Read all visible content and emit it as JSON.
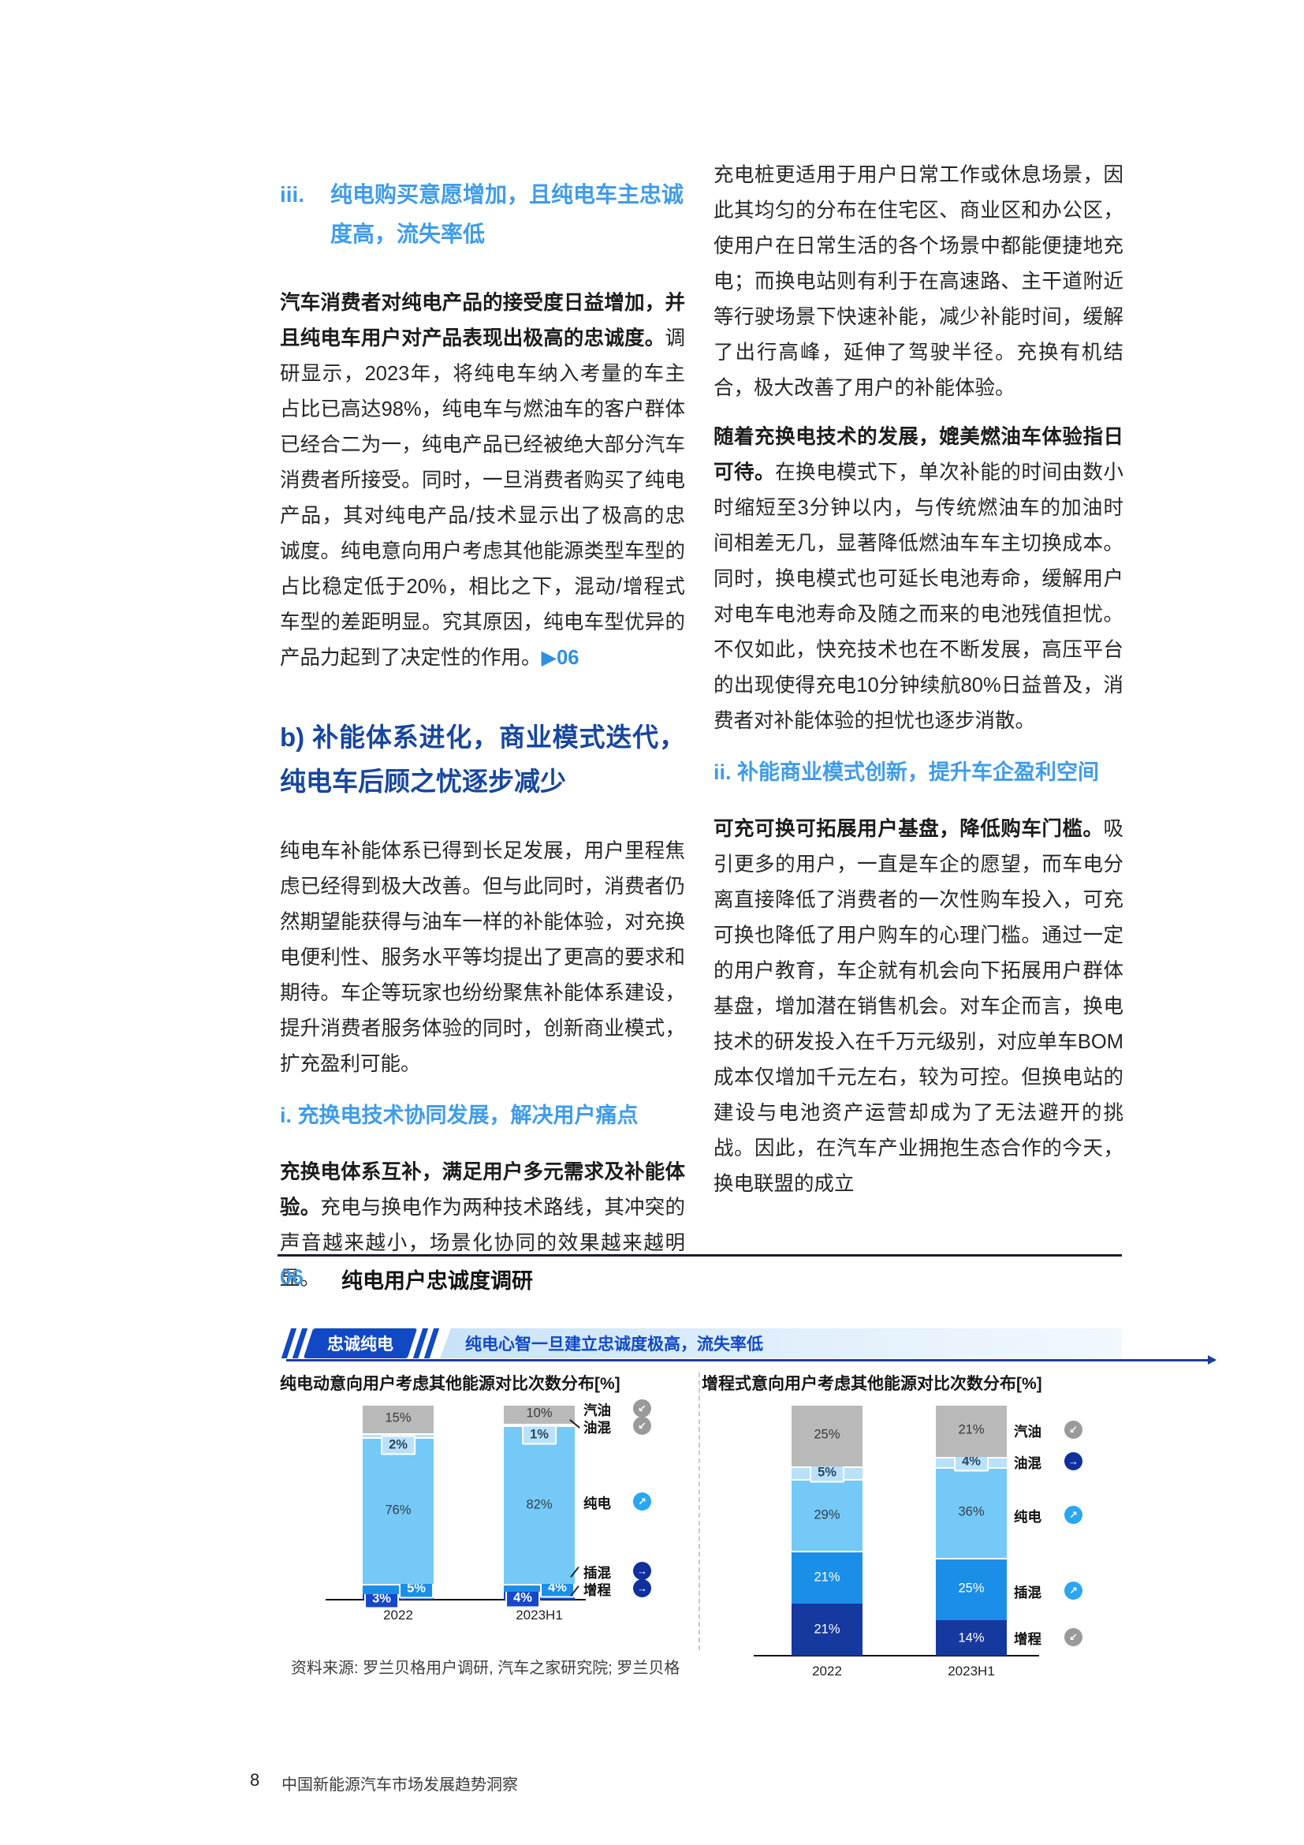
{
  "columns": {
    "left": {
      "heading_iii_num": "iii.",
      "heading_iii_text": "纯电购买意愿增加，且纯电车主忠诚度高，流失率低",
      "p1_bold": "汽车消费者对纯电产品的接受度日益增加，并且纯电车用户对产品表现出极高的忠诚度。",
      "p1_rest": "调研显示，2023年，将纯电车纳入考量的车主占比已高达98%，纯电车与燃油车的客户群体已经合二为一，纯电产品已经被绝大部分汽车消费者所接受。同时，一旦消费者购买了纯电产品，其对纯电产品/技术显示出了极高的忠诚度。纯电意向用户考虑其他能源类型车型的占比稳定低于20%，相比之下，混动/增程式车型的差距明显。究其原因，纯电车型优异的产品力起到了决定性的作用。",
      "p1_marker": "▶06",
      "heading_b": "b) 补能体系进化，商业模式迭代，纯电车后顾之忧逐步减少",
      "p2": "纯电车补能体系已得到长足发展，用户里程焦虑已经得到极大改善。但与此同时，消费者仍然期望能获得与油车一样的补能体验，对充换电便利性、服务水平等均提出了更高的要求和期待。车企等玩家也纷纷聚焦补能体系建设，提升消费者服务体验的同时，创新商业模式，扩充盈利可能。",
      "heading_i": "i. 充换电技术协同发展，解决用户痛点",
      "p3_bold": "充换电体系互补，满足用户多元需求及补能体验。",
      "p3_rest": "充电与换电作为两种技术路线，其冲突的声音越来越小，场景化协同的效果越来越明显。"
    },
    "right": {
      "p1": "充电桩更适用于用户日常工作或休息场景，因此其均匀的分布在住宅区、商业区和办公区，使用户在日常生活的各个场景中都能便捷地充电；而换电站则有利于在高速路、主干道附近等行驶场景下快速补能，减少补能时间，缓解了出行高峰，延伸了驾驶半径。充换有机结合，极大改善了用户的补能体验。",
      "p2_bold": "随着充换电技术的发展，媲美燃油车体验指日可待。",
      "p2_rest": "在换电模式下，单次补能的时间由数小时缩短至3分钟以内，与传统燃油车的加油时间相差无几，显著降低燃油车车主切换成本。同时，换电模式也可延长电池寿命，缓解用户对电车电池寿命及随之而来的电池残值担忧。不仅如此，快充技术也在不断发展，高压平台的出现使得充电10分钟续航80%日益普及，消费者对补能体验的担忧也逐步消散。",
      "heading_ii": "ii. 补能商业模式创新，提升车企盈利空间",
      "p3_bold": "可充可换可拓展用户基盘，降低购车门槛。",
      "p3_rest": "吸引更多的用户，一直是车企的愿望，而车电分离直接降低了消费者的一次性购车投入，可充可换也降低了用户购车的心理门槛。通过一定的用户教育，车企就有机会向下拓展用户群体基盘，增加潜在销售机会。对车企而言，换电技术的研发投入在千万元级别，对应单车BOM成本仅增加千元左右，较为可控。但换电站的建设与电池资产运营却成为了无法避开的挑战。因此，在汽车产业拥抱生态合作的今天，换电联盟的成立"
    }
  },
  "figure": {
    "number": "06",
    "title": "纯电用户忠诚度调研",
    "banner_tag": "忠诚纯电",
    "banner_subtitle": "纯电心智一旦建立忠诚度极高，流失率低",
    "source": "资料来源: 罗兰贝格用户调研, 汽车之家研究院; 罗兰贝格"
  },
  "footer": {
    "page_number": "8",
    "doc_title": "中国新能源汽车市场发展趋势洞察"
  },
  "colors": {
    "accent_light_blue": "#3f9ce9",
    "accent_navy": "#17479d",
    "banner_blue": "#1149c4",
    "line_navy": "#1c3e9e",
    "bar_gray": "#b9b9b9",
    "bar_pale_blue": "#b9e1fa",
    "bar_sky_blue": "#74c9f7",
    "bar_azure": "#1b8fe8",
    "bar_royal_blue": "#1547c9",
    "bar_navy": "#16399f",
    "icon_gray": "#9a9a9a",
    "icon_sky": "#2ba6f0",
    "icon_navy": "#11309e"
  },
  "chart_data": [
    {
      "type": "bar",
      "stacked": true,
      "title": "纯电动意向用户考虑其他能源对比次数分布[%]",
      "unit": "%",
      "categories": [
        "2022",
        "2023H1"
      ],
      "series": [
        {
          "name": "增程",
          "color": "#1547c9",
          "values": [
            3,
            4
          ]
        },
        {
          "name": "插混",
          "color": "#1b8fe8",
          "values": [
            5,
            4
          ]
        },
        {
          "name": "纯电",
          "color": "#74c9f7",
          "values": [
            76,
            82
          ]
        },
        {
          "name": "油混",
          "color": "#b9e1fa",
          "values": [
            2,
            1
          ]
        },
        {
          "name": "汽油",
          "color": "#b9b9b9",
          "values": [
            15,
            10
          ]
        }
      ],
      "legend": [
        {
          "label": "汽油",
          "trend": "down",
          "icon_color": "#9a9a9a"
        },
        {
          "label": "油混",
          "trend": "down",
          "icon_color": "#9a9a9a"
        },
        {
          "label": "纯电",
          "trend": "up",
          "icon_color": "#2ba6f0"
        },
        {
          "label": "插混",
          "trend": "right",
          "icon_color": "#11309e"
        },
        {
          "label": "增程",
          "trend": "right",
          "icon_color": "#11309e"
        }
      ]
    },
    {
      "type": "bar",
      "stacked": true,
      "title": "增程式意向用户考虑其他能源对比次数分布[%]",
      "unit": "%",
      "categories": [
        "2022",
        "2023H1"
      ],
      "series": [
        {
          "name": "增程",
          "color": "#16399f",
          "values": [
            21,
            14
          ]
        },
        {
          "name": "插混",
          "color": "#1b8fe8",
          "values": [
            21,
            25
          ]
        },
        {
          "name": "纯电",
          "color": "#74c9f7",
          "values": [
            29,
            36
          ]
        },
        {
          "name": "油混",
          "color": "#b9e1fa",
          "values": [
            5,
            4
          ]
        },
        {
          "name": "汽油",
          "color": "#b9b9b9",
          "values": [
            25,
            21
          ]
        }
      ],
      "legend": [
        {
          "label": "汽油",
          "trend": "down",
          "icon_color": "#9a9a9a"
        },
        {
          "label": "油混",
          "trend": "right",
          "icon_color": "#11309e"
        },
        {
          "label": "纯电",
          "trend": "up",
          "icon_color": "#2ba6f0"
        },
        {
          "label": "插混",
          "trend": "up",
          "icon_color": "#2ba6f0"
        },
        {
          "label": "增程",
          "trend": "down",
          "icon_color": "#9a9a9a"
        }
      ]
    }
  ]
}
